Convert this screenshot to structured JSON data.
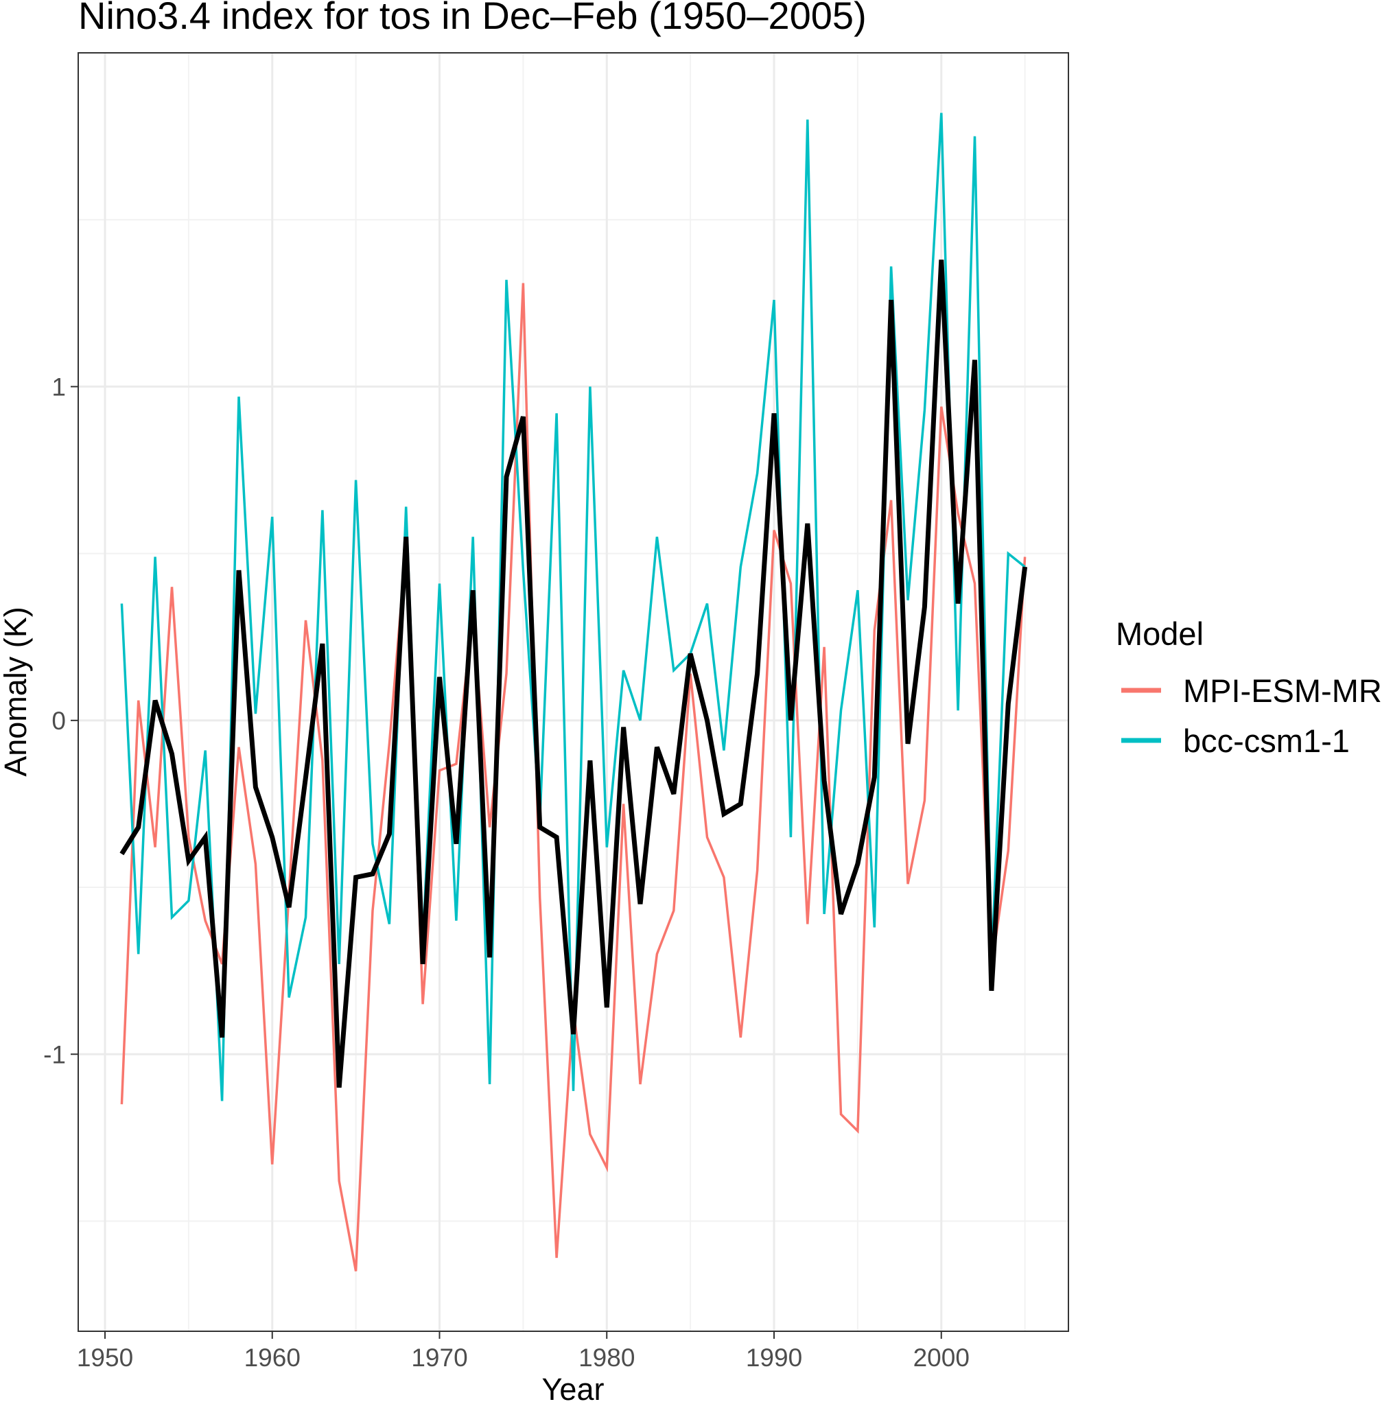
{
  "chart_data": {
    "type": "line",
    "title": "Nino3.4 index for tos in Dec–Feb (1950–2005)",
    "xlabel": "Year",
    "ylabel": "Anomaly (K)",
    "xlim": [
      1948.4,
      2007.6
    ],
    "ylim": [
      -1.83,
      2.0
    ],
    "x_ticks": [
      1950,
      1960,
      1970,
      1980,
      1990,
      2000
    ],
    "x_tick_labels": [
      "1950",
      "1960",
      "1970",
      "1980",
      "1990",
      "2000"
    ],
    "y_ticks": [
      -1,
      0,
      1
    ],
    "y_tick_labels": [
      "-1",
      "0",
      "1"
    ],
    "grid": true,
    "legend": {
      "title": "Model",
      "position": "right"
    },
    "x": [
      1951,
      1952,
      1953,
      1954,
      1955,
      1956,
      1957,
      1958,
      1959,
      1960,
      1961,
      1962,
      1963,
      1964,
      1965,
      1966,
      1967,
      1968,
      1969,
      1970,
      1971,
      1972,
      1973,
      1974,
      1975,
      1976,
      1977,
      1978,
      1979,
      1980,
      1981,
      1982,
      1983,
      1984,
      1985,
      1986,
      1987,
      1988,
      1989,
      1990,
      1991,
      1992,
      1993,
      1994,
      1995,
      1996,
      1997,
      1998,
      1999,
      2000,
      2001,
      2002,
      2003,
      2004,
      2005
    ],
    "series": [
      {
        "name": "MPI-ESM-MR",
        "color": "#f8766d",
        "values": [
          -1.15,
          0.06,
          -0.38,
          0.4,
          -0.35,
          -0.6,
          -0.73,
          -0.08,
          -0.43,
          -1.33,
          -0.52,
          0.3,
          -0.12,
          -1.38,
          -1.65,
          -0.57,
          -0.07,
          0.52,
          -0.85,
          -0.15,
          -0.13,
          0.32,
          -0.32,
          0.14,
          1.31,
          -0.53,
          -1.61,
          -0.87,
          -1.24,
          -1.34,
          -0.25,
          -1.09,
          -0.7,
          -0.57,
          0.14,
          -0.35,
          -0.47,
          -0.95,
          -0.45,
          0.57,
          0.41,
          -0.61,
          0.22,
          -1.18,
          -1.23,
          0.27,
          0.66,
          -0.49,
          -0.24,
          0.94,
          0.62,
          0.41,
          -0.74,
          -0.39,
          0.49
        ]
      },
      {
        "name": "bcc-csm1-1",
        "color": "#00bfc4",
        "values": [
          0.35,
          -0.7,
          0.49,
          -0.59,
          -0.54,
          -0.09,
          -1.14,
          0.97,
          0.02,
          0.61,
          -0.83,
          -0.59,
          0.63,
          -0.73,
          0.72,
          -0.37,
          -0.61,
          0.64,
          -0.67,
          0.41,
          -0.6,
          0.55,
          -1.09,
          1.32,
          0.45,
          -0.3,
          0.92,
          -1.11,
          1.0,
          -0.38,
          0.15,
          0.0,
          0.55,
          0.15,
          0.2,
          0.35,
          -0.09,
          0.46,
          0.74,
          1.26,
          -0.35,
          1.8,
          -0.58,
          0.03,
          0.39,
          -0.62,
          1.36,
          0.36,
          0.93,
          1.82,
          0.03,
          1.75,
          -0.74,
          0.5,
          0.46
        ]
      },
      {
        "name": "",
        "color": "#000000",
        "values": [
          -0.4,
          -0.32,
          0.06,
          -0.1,
          -0.42,
          -0.35,
          -0.95,
          0.45,
          -0.2,
          -0.35,
          -0.56,
          -0.17,
          0.23,
          -1.1,
          -0.47,
          -0.46,
          -0.34,
          0.55,
          -0.73,
          0.13,
          -0.37,
          0.39,
          -0.71,
          0.73,
          0.91,
          -0.32,
          -0.35,
          -0.94,
          -0.12,
          -0.86,
          -0.02,
          -0.55,
          -0.08,
          -0.22,
          0.2,
          0.0,
          -0.28,
          -0.25,
          0.14,
          0.92,
          0.0,
          0.59,
          -0.18,
          -0.58,
          -0.43,
          -0.17,
          1.26,
          -0.07,
          0.34,
          1.38,
          0.35,
          1.08,
          -0.81,
          0.05,
          0.46
        ]
      }
    ]
  }
}
